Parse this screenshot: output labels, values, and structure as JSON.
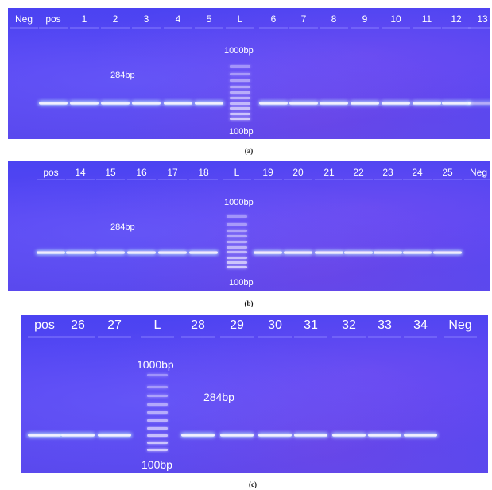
{
  "panels": [
    {
      "caption": "(a)",
      "lanes": [
        "Neg",
        "pos",
        "1",
        "2",
        "3",
        "4",
        "5",
        "L",
        "6",
        "7",
        "8",
        "9",
        "10",
        "11",
        "12",
        "13"
      ],
      "ladder_top_label": "1000bp",
      "ladder_bottom_label": "100bp",
      "band_label": "284bp",
      "band_intensity": [
        0,
        1,
        1,
        1,
        1,
        1,
        1,
        null,
        1,
        1,
        1,
        1,
        1,
        1,
        1,
        0.6
      ]
    },
    {
      "caption": "(b)",
      "lanes": [
        "pos",
        "14",
        "15",
        "16",
        "17",
        "18",
        "L",
        "19",
        "20",
        "21",
        "22",
        "23",
        "24",
        "25",
        "Neg"
      ],
      "ladder_top_label": "1000bp",
      "ladder_bottom_label": "100bp",
      "band_label": "284bp",
      "band_intensity": [
        1,
        1,
        1,
        1,
        1,
        1,
        null,
        1,
        1,
        1,
        1,
        1,
        1,
        1,
        0
      ]
    },
    {
      "caption": "(c)",
      "lanes": [
        "pos",
        "26",
        "27",
        "L",
        "28",
        "29",
        "30",
        "31",
        "32",
        "33",
        "34",
        "Neg"
      ],
      "ladder_top_label": "1000bp",
      "ladder_bottom_label": "100bp",
      "band_label": "284bp",
      "band_intensity": [
        1,
        1,
        1,
        null,
        1,
        1,
        1,
        1,
        1,
        1,
        1,
        0
      ]
    }
  ],
  "colors": {
    "gel": "#5246f2",
    "band": "#ffffff",
    "label": "#ffffff",
    "caption": "#111111"
  }
}
